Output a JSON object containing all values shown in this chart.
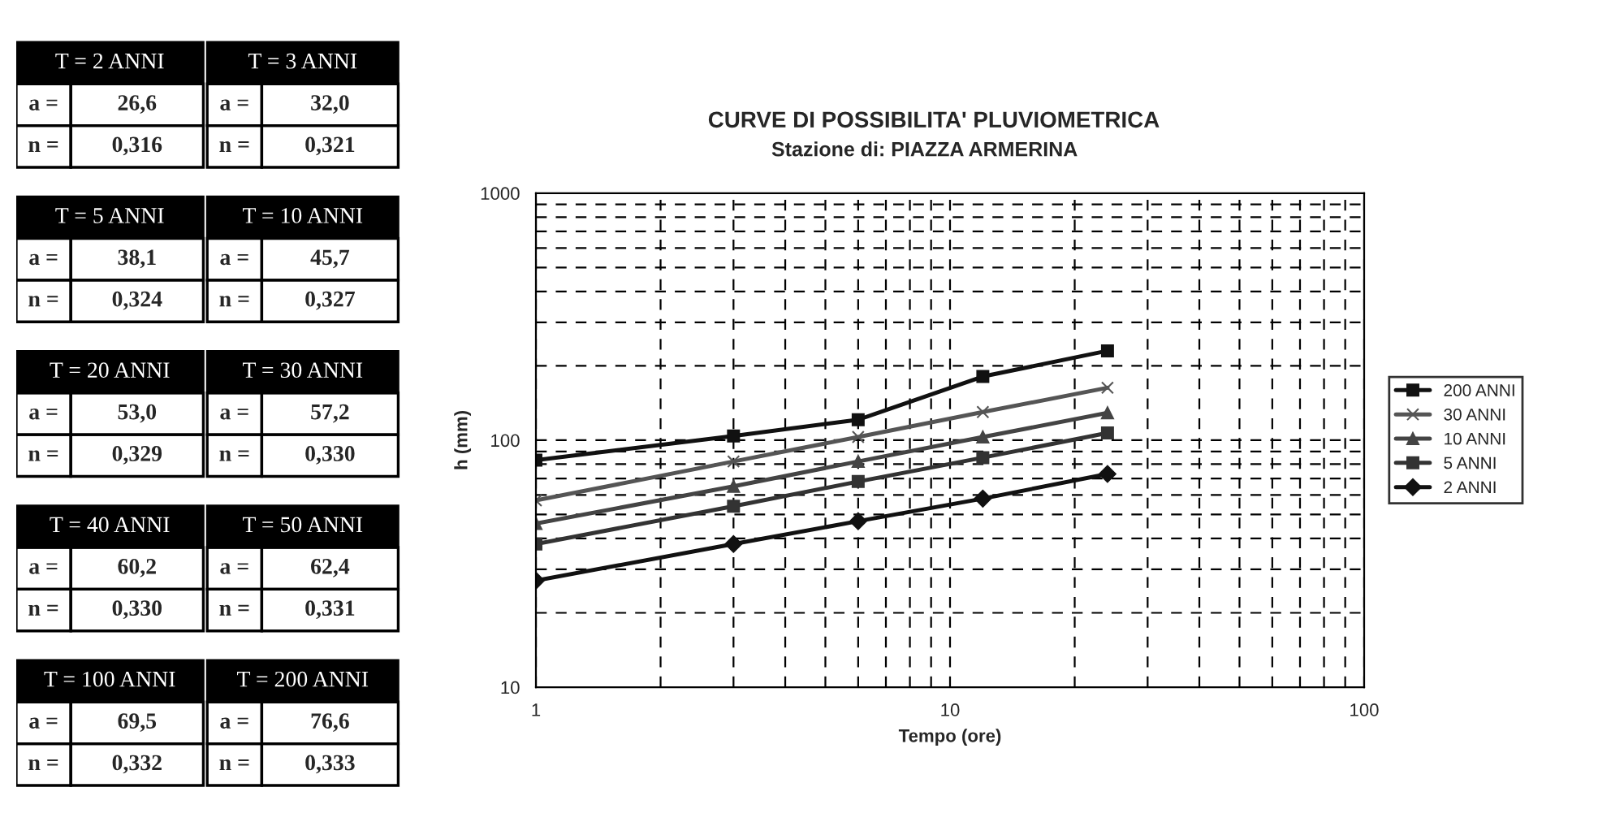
{
  "chart_data": [
    {
      "type": "other",
      "annotations": [
        "T = 2 ANNI",
        "T = 3 ANNI",
        "a =",
        "26,6",
        "a =",
        "32,0",
        "n =",
        "0,316",
        "n =",
        "0,321",
        "T = 5 ANNI",
        "T = 10 ANNI",
        "a =",
        "38,1",
        "a =",
        "45,7",
        "n =",
        "0,324",
        "n =",
        "0,327",
        "T = 20 ANNI",
        "T = 30 ANNI",
        "a =",
        "53,0",
        "a =",
        "57,2",
        "n =",
        "0,329",
        "n =",
        "0,330",
        "T = 40 ANNI",
        "T = 50 ANNI",
        "a =",
        "60,2",
        "a =",
        "62,4",
        "n =",
        "0,330",
        "n =",
        "0,331",
        "T = 100 ANNI",
        "T = 200 ANNI",
        "a =",
        "69,5",
        "a =",
        "76,6",
        "n =",
        "0,332",
        "n =",
        "0,333"
      ]
    },
    {
      "type": "line",
      "title": "CURVE DI POSSIBILITA' PLUVIOMETRICA",
      "subtitle": "Stazione di: PIAZZA ARMERINA",
      "xlabel": "Tempo (ore)",
      "ylabel": "h (mm)",
      "x": [
        1,
        3,
        6,
        12,
        24
      ],
      "log": "xy",
      "xlim": [
        1,
        100
      ],
      "ylim": [
        10,
        1000
      ],
      "xticks": [
        1,
        10,
        100
      ],
      "yticks": [
        10,
        100,
        1000
      ],
      "grid": true,
      "legend": "right",
      "line_style": "solid",
      "series": [
        {
          "name": "200 ANNI",
          "color": "#111111",
          "marker": "square",
          "values": [
            83,
            104,
            121,
            181,
            230
          ]
        },
        {
          "name": "30 ANNI",
          "color": "#555555",
          "marker": "cross",
          "values": [
            57,
            82,
            103,
            130,
            163
          ]
        },
        {
          "name": "10 ANNI",
          "color": "#444444",
          "marker": "triangle",
          "values": [
            46,
            65,
            82,
            103,
            129
          ]
        },
        {
          "name": "5 ANNI",
          "color": "#333333",
          "marker": "square",
          "values": [
            38,
            54,
            68,
            85,
            107
          ]
        },
        {
          "name": "2 ANNI",
          "color": "#111111",
          "marker": "diamond",
          "values": [
            27,
            38,
            47,
            58,
            73
          ]
        }
      ]
    }
  ]
}
